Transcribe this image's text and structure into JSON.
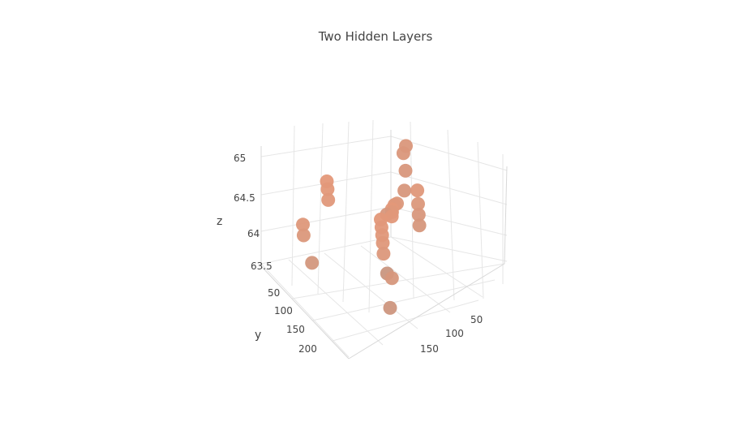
{
  "chart_data": {
    "type": "scatter",
    "title": "Two Hidden Layers",
    "xlabel": "",
    "ylabel": "y",
    "zlabel": "z",
    "x_ticks": [
      "50",
      "100",
      "150"
    ],
    "y_ticks": [
      "50",
      "100",
      "150",
      "200"
    ],
    "z_ticks": [
      "65",
      "64.5",
      "64",
      "63.5"
    ],
    "ylim": [
      20,
      220
    ],
    "zlim": [
      63.3,
      65.1
    ],
    "marker_colors": {
      "near": "#c49580",
      "far": "#f29a76"
    },
    "grid": true,
    "legend": "none",
    "points": [
      {
        "x": 40,
        "y": 25,
        "z": 64.15
      },
      {
        "x": 45,
        "y": 35,
        "z": 64.15
      },
      {
        "x": 60,
        "y": 50,
        "z": 64.1
      },
      {
        "x": 75,
        "y": 70,
        "z": 64.05
      },
      {
        "x": 90,
        "y": 100,
        "z": 64.2
      },
      {
        "x": 95,
        "y": 110,
        "z": 64.3
      },
      {
        "x": 40,
        "y": 150,
        "z": 64.55
      },
      {
        "x": 45,
        "y": 155,
        "z": 64.5
      },
      {
        "x": 50,
        "y": 160,
        "z": 64.4
      },
      {
        "x": 50,
        "y": 200,
        "z": 64.3
      },
      {
        "x": 55,
        "y": 205,
        "z": 64.2
      },
      {
        "x": 70,
        "y": 210,
        "z": 63.9
      },
      {
        "x": 110,
        "y": 140,
        "z": 63.5
      },
      {
        "x": 85,
        "y": 110,
        "z": 64.05
      },
      {
        "x": 100,
        "y": 120,
        "z": 64.3
      },
      {
        "x": 110,
        "y": 150,
        "z": 64.5
      },
      {
        "x": 115,
        "y": 155,
        "z": 64.45
      },
      {
        "x": 120,
        "y": 160,
        "z": 64.4
      },
      {
        "x": 125,
        "y": 165,
        "z": 64.35
      },
      {
        "x": 130,
        "y": 170,
        "z": 64.25
      },
      {
        "x": 145,
        "y": 175,
        "z": 64.0
      },
      {
        "x": 155,
        "y": 190,
        "z": 63.7
      },
      {
        "x": 100,
        "y": 80,
        "z": 64.35
      },
      {
        "x": 105,
        "y": 85,
        "z": 64.2
      },
      {
        "x": 110,
        "y": 90,
        "z": 64.1
      },
      {
        "x": 115,
        "y": 95,
        "z": 64.0
      },
      {
        "x": 108,
        "y": 130,
        "z": 64.5
      },
      {
        "x": 112,
        "y": 135,
        "z": 64.45
      }
    ]
  }
}
